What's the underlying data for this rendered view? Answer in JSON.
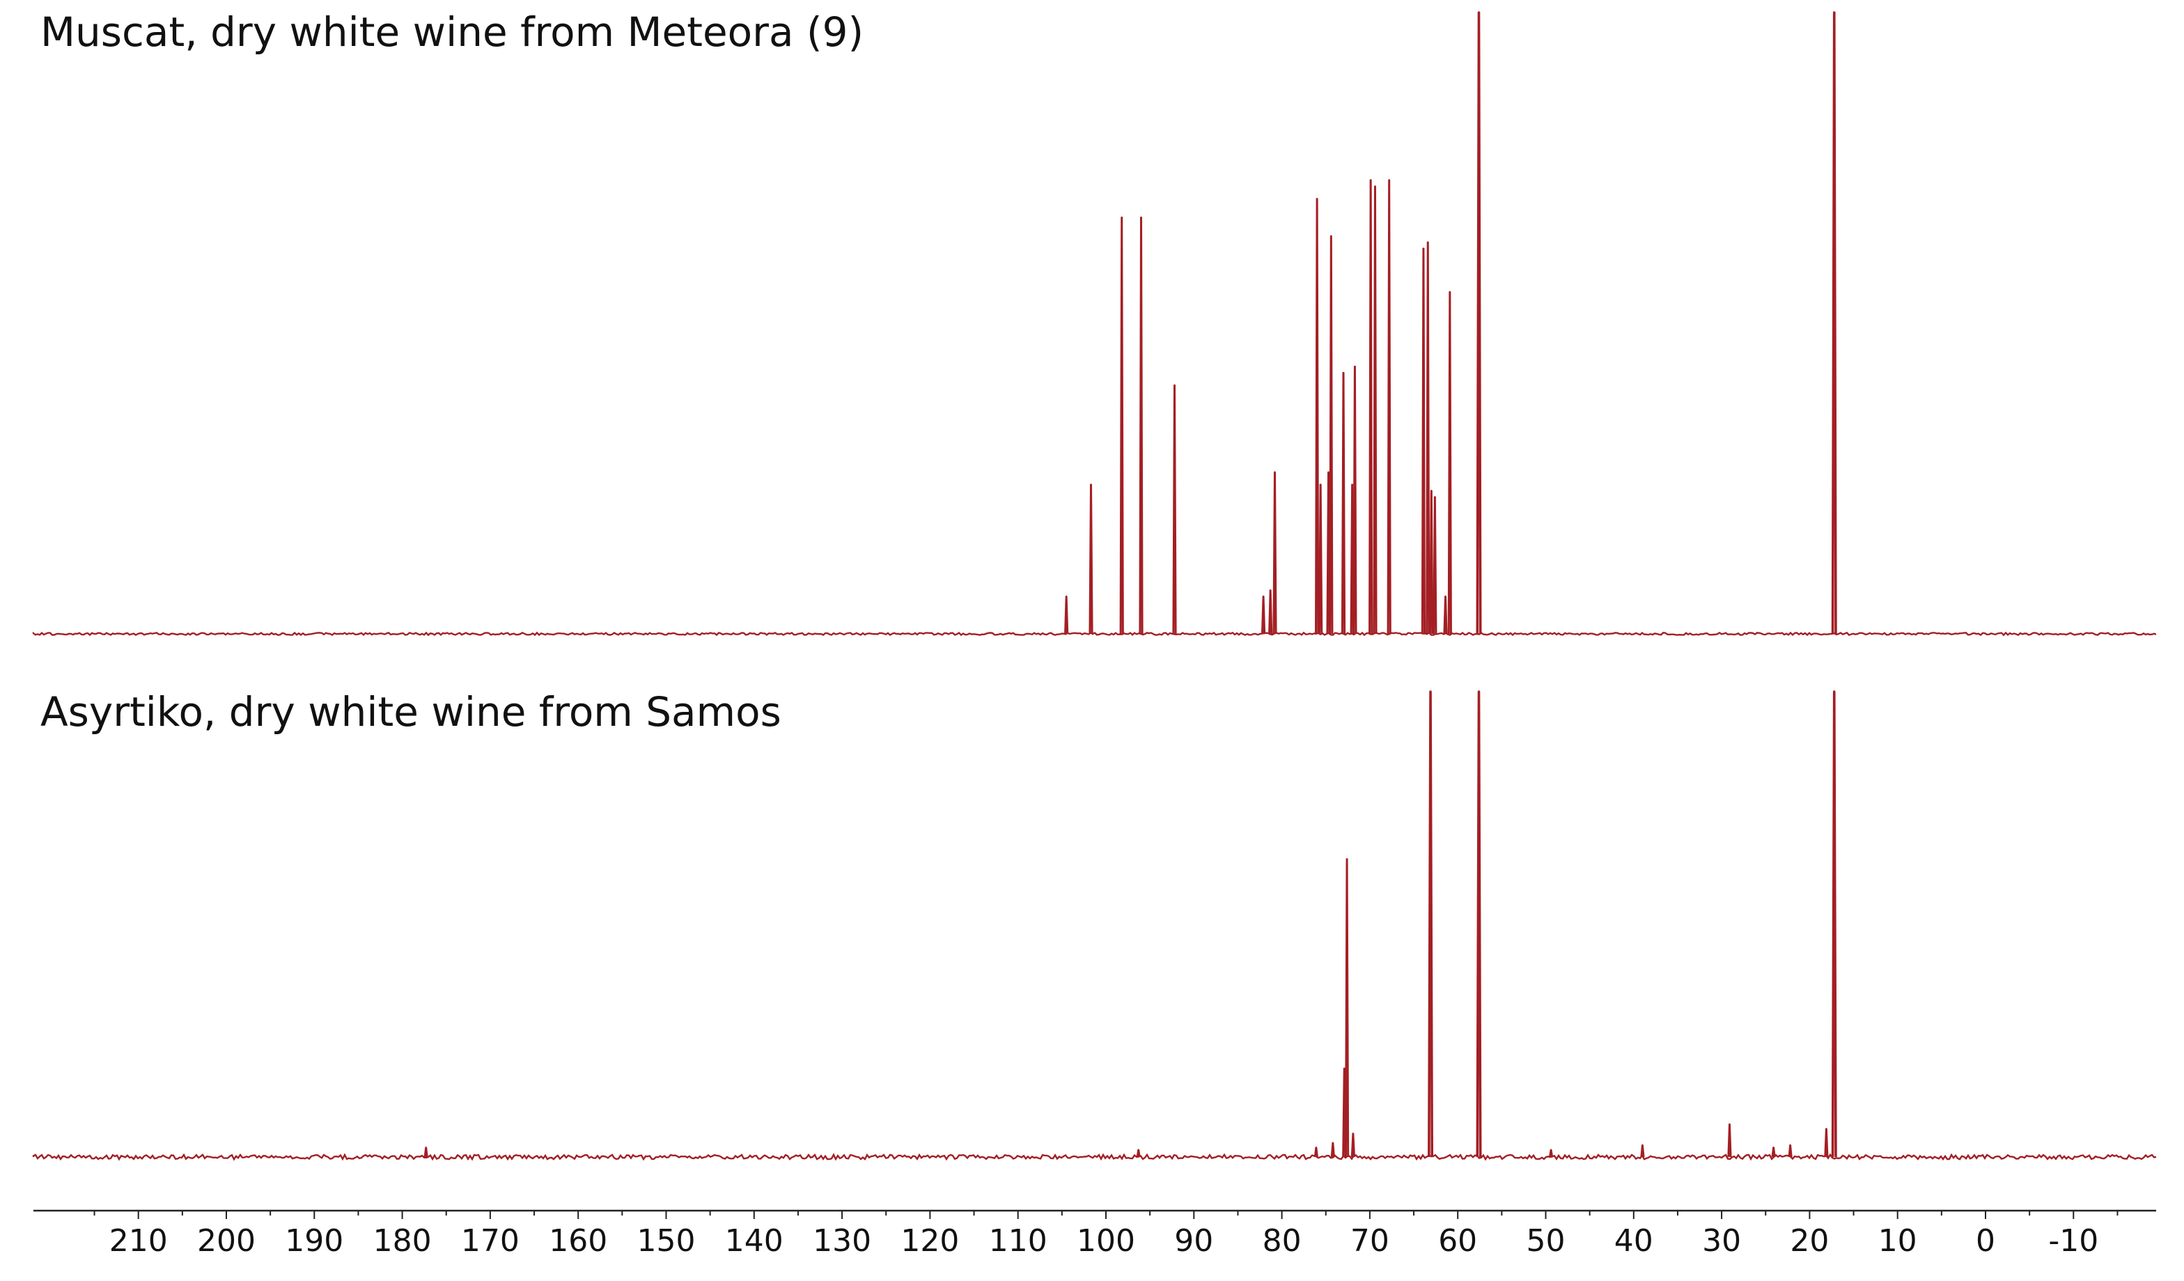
{
  "chart_data": [
    {
      "type": "line",
      "title": "Muscat, dry white wine from Meteora (9)",
      "xlabel": "",
      "ylabel": "",
      "xlim": [
        220,
        -18
      ],
      "x_reversed": true,
      "color": "#a31f24",
      "series": [
        {
          "peaks": [
            {
              "x": 104.5,
              "y": 0.06
            },
            {
              "x": 101.7,
              "y": 0.24
            },
            {
              "x": 98.2,
              "y": 0.67
            },
            {
              "x": 96.0,
              "y": 0.67
            },
            {
              "x": 92.2,
              "y": 0.4
            },
            {
              "x": 82.1,
              "y": 0.06
            },
            {
              "x": 81.3,
              "y": 0.07
            },
            {
              "x": 80.8,
              "y": 0.26
            },
            {
              "x": 76.0,
              "y": 0.7
            },
            {
              "x": 75.6,
              "y": 0.24
            },
            {
              "x": 74.7,
              "y": 0.26
            },
            {
              "x": 74.4,
              "y": 0.64
            },
            {
              "x": 73.0,
              "y": 0.42
            },
            {
              "x": 72.0,
              "y": 0.24
            },
            {
              "x": 71.7,
              "y": 0.43
            },
            {
              "x": 69.9,
              "y": 0.73
            },
            {
              "x": 69.4,
              "y": 0.72
            },
            {
              "x": 67.8,
              "y": 0.73
            },
            {
              "x": 63.9,
              "y": 0.62
            },
            {
              "x": 63.4,
              "y": 0.63
            },
            {
              "x": 63.0,
              "y": 0.23
            },
            {
              "x": 62.6,
              "y": 0.22
            },
            {
              "x": 61.4,
              "y": 0.06
            },
            {
              "x": 60.9,
              "y": 0.55
            },
            {
              "x": 57.6,
              "y": 1.0
            },
            {
              "x": 17.2,
              "y": 1.0
            }
          ]
        }
      ]
    },
    {
      "type": "line",
      "title": "Asyrtiko, dry white wine from Samos",
      "xlabel": "",
      "ylabel": "",
      "xlim": [
        220,
        -18
      ],
      "x_reversed": true,
      "color": "#a31f24",
      "series": [
        {
          "peaks": [
            {
              "x": 177.3,
              "y": 0.02
            },
            {
              "x": 96.3,
              "y": 0.015
            },
            {
              "x": 76.1,
              "y": 0.02
            },
            {
              "x": 74.2,
              "y": 0.03
            },
            {
              "x": 72.9,
              "y": 0.19
            },
            {
              "x": 72.6,
              "y": 0.64
            },
            {
              "x": 71.9,
              "y": 0.05
            },
            {
              "x": 63.1,
              "y": 1.0
            },
            {
              "x": 57.6,
              "y": 1.0
            },
            {
              "x": 49.4,
              "y": 0.015
            },
            {
              "x": 39.0,
              "y": 0.025
            },
            {
              "x": 29.1,
              "y": 0.07
            },
            {
              "x": 24.1,
              "y": 0.02
            },
            {
              "x": 22.2,
              "y": 0.025
            },
            {
              "x": 18.1,
              "y": 0.06
            },
            {
              "x": 17.2,
              "y": 1.0
            }
          ]
        }
      ]
    }
  ],
  "x_axis": {
    "ticks": [
      "210",
      "200",
      "190",
      "180",
      "170",
      "160",
      "150",
      "140",
      "130",
      "120",
      "110",
      "100",
      "90",
      "80",
      "70",
      "60",
      "50",
      "40",
      "30",
      "20",
      "10",
      "0",
      "-10"
    ],
    "tick_values": [
      210,
      200,
      190,
      180,
      170,
      160,
      150,
      140,
      130,
      120,
      110,
      100,
      90,
      80,
      70,
      60,
      50,
      40,
      30,
      20,
      10,
      0,
      -10
    ],
    "minor_step": 5
  }
}
